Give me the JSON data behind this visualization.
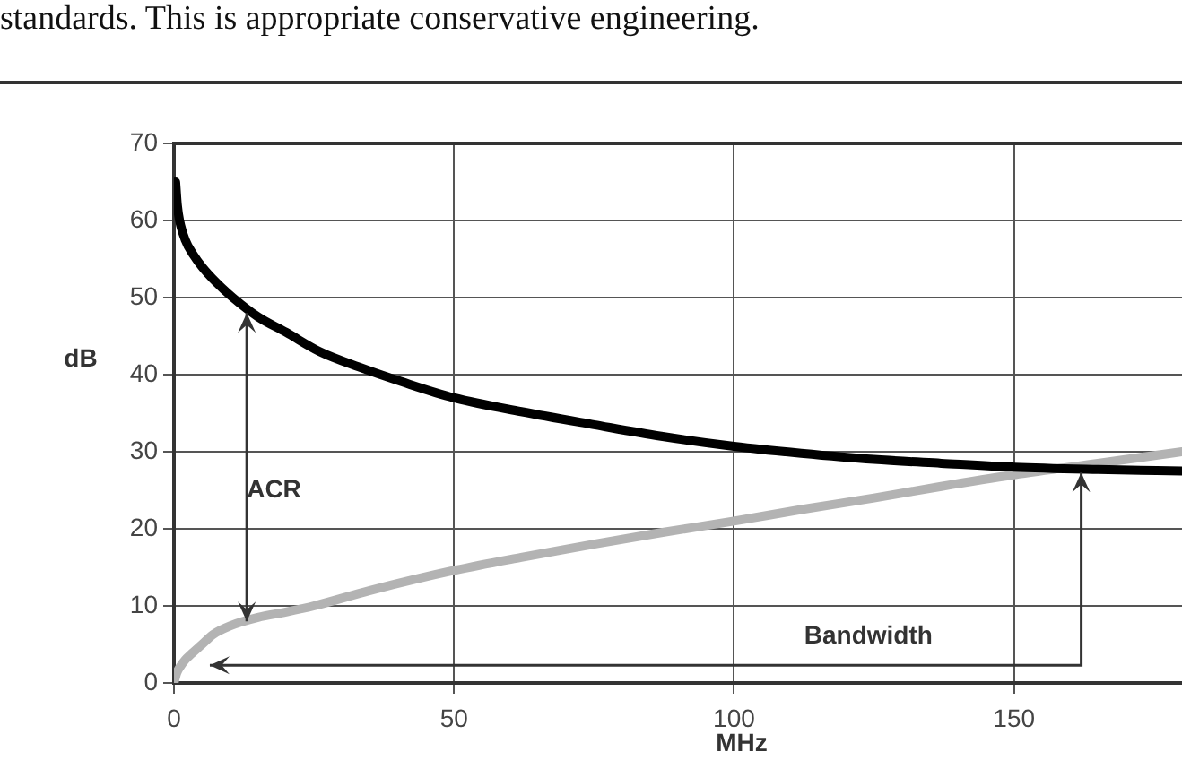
{
  "chart_data": {
    "type": "line",
    "xlabel": "MHz",
    "ylabel": "dB",
    "annotations": [
      "standards. This is appropriate conservative engineering.",
      "ACR",
      "Bandwidth"
    ],
    "series": [
      {
        "color": "#000000",
        "x": [
          0.3,
          0.6,
          1,
          2,
          3.5,
          5,
          7.5,
          10.5,
          15,
          20,
          26,
          33,
          41,
          50,
          62,
          75,
          87,
          100,
          112,
          125,
          137,
          150,
          165,
          180
        ],
        "values": [
          65,
          62,
          60,
          57.5,
          55.5,
          54,
          52,
          50,
          47.5,
          45.5,
          43,
          41,
          39,
          37,
          35.2,
          33.5,
          32,
          30.7,
          29.8,
          29,
          28.5,
          28,
          27.7,
          27.5
        ]
      },
      {
        "color": "#b3b3b3",
        "x": [
          0,
          0.5,
          1,
          2,
          3,
          5,
          7,
          10,
          15,
          20,
          25,
          35,
          50,
          62,
          75,
          87,
          100,
          112,
          125,
          137,
          150,
          165,
          180
        ],
        "values": [
          0,
          1.3,
          2,
          3,
          3.7,
          5,
          6.3,
          7.4,
          8.5,
          9.2,
          10,
          12,
          14.6,
          16.3,
          18,
          19.5,
          21,
          22.5,
          24,
          25.5,
          27,
          28.5,
          30
        ]
      }
    ],
    "xlim": [
      0,
      180
    ],
    "xticks": [
      0,
      50,
      100,
      150
    ],
    "ylim": [
      0,
      70
    ],
    "yticks": [
      0,
      10,
      20,
      30,
      40,
      50,
      60,
      70
    ],
    "grid": true,
    "legend": false,
    "marker": "none",
    "line_style": "solid"
  }
}
